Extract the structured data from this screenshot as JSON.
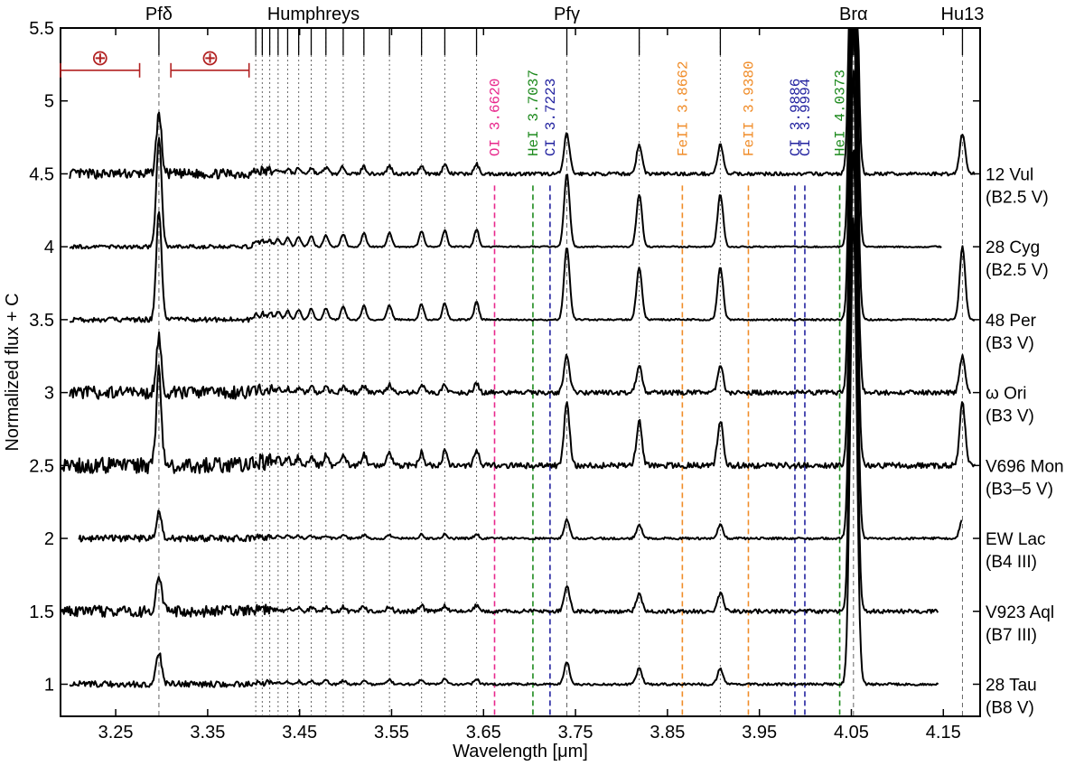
{
  "chart_data": {
    "type": "line",
    "xlabel": "Wavelength [μm]",
    "ylabel": "Normalized flux + C",
    "xlim": [
      3.19,
      4.19
    ],
    "ylim": [
      0.78,
      5.5
    ],
    "xticks": [
      3.25,
      3.35,
      3.45,
      3.55,
      3.65,
      3.75,
      3.85,
      3.95,
      4.05,
      4.15
    ],
    "xtick_labels": [
      "3.25",
      "3.35",
      "3.45",
      "3.55",
      "3.65",
      "3.75",
      "3.85",
      "3.95",
      "4.05",
      "4.15"
    ],
    "yticks": [
      1,
      1.5,
      2,
      2.5,
      3,
      3.5,
      4,
      4.5,
      5,
      5.5
    ],
    "ytick_labels": [
      "1",
      "1.5",
      "2",
      "2.5",
      "3",
      "3.5",
      "4",
      "4.5",
      "5",
      "5.5"
    ],
    "series_labels": [
      {
        "text": "Pfδ",
        "x": 3.297
      },
      {
        "text": "Humphreys",
        "x": 3.465
      },
      {
        "text": "Pfγ",
        "x": 3.7406
      },
      {
        "text": "Brα",
        "x": 4.0523
      },
      {
        "text": "Hu13",
        "x": 4.1708
      }
    ],
    "hydrogen_lines": [
      3.297,
      3.7406,
      4.0523,
      4.1708,
      3.9075,
      3.8193,
      3.6424,
      3.6079,
      3.5826,
      3.5477,
      3.5199,
      3.4974,
      3.4786,
      3.4626,
      3.449,
      3.437,
      3.4266,
      3.4175,
      3.4094,
      3.4023
    ],
    "telluric_bands": [
      {
        "x0": 3.19,
        "x1": 3.276,
        "label": "⊕"
      },
      {
        "x0": 3.31,
        "x1": 3.395,
        "label": "⊕"
      }
    ],
    "line_ids": [
      {
        "species": "OI",
        "wave": "3.6620",
        "x": 3.662,
        "color": "#e8288c"
      },
      {
        "species": "HeI",
        "wave": "3.7037",
        "x": 3.7037,
        "color": "#1e8a1e"
      },
      {
        "species": "CI",
        "wave": "3.7223",
        "x": 3.7223,
        "color": "#2323a0"
      },
      {
        "species": "FeII",
        "wave": "3.8662",
        "x": 3.8662,
        "color": "#f08c28"
      },
      {
        "species": "FeII",
        "wave": "3.9380",
        "x": 3.938,
        "color": "#f08c28"
      },
      {
        "species": "CI",
        "wave": "3.9886",
        "x": 3.9886,
        "color": "#2323a0"
      },
      {
        "species": "CI",
        "wave": "3.9994",
        "x": 3.9994,
        "color": "#2323a0"
      },
      {
        "species": "HeI",
        "wave": "4.0373",
        "x": 4.0373,
        "color": "#1e8a1e"
      }
    ],
    "series": [
      {
        "name": "12 Vul",
        "spectral_type": "(B2.5 V)",
        "offset": 4.5,
        "x_start": 3.2,
        "x_end": 4.185
      },
      {
        "name": "28 Cyg",
        "spectral_type": "(B2.5 V)",
        "offset": 4.0,
        "x_start": 3.2,
        "x_end": 4.148
      },
      {
        "name": "48 Per",
        "spectral_type": "(B3 V)",
        "offset": 3.5,
        "x_start": 3.2,
        "x_end": 4.185
      },
      {
        "name": "ω Ori",
        "spectral_type": "(B3 V)",
        "offset": 3.0,
        "x_start": 3.2,
        "x_end": 4.18
      },
      {
        "name": "V696 Mon",
        "spectral_type": "(B3–5 V)",
        "offset": 2.5,
        "x_start": 3.19,
        "x_end": 4.185
      },
      {
        "name": "EW Lac",
        "spectral_type": "(B4 III)",
        "offset": 2.0,
        "x_start": 3.21,
        "x_end": 4.17
      },
      {
        "name": "V923 Aql",
        "spectral_type": "(B7 III)",
        "offset": 1.5,
        "x_start": 3.19,
        "x_end": 4.145
      },
      {
        "name": "28 Tau",
        "spectral_type": "(B8 V)",
        "offset": 1.0,
        "x_start": 3.2,
        "x_end": 4.145
      }
    ],
    "grid": false,
    "colors": {
      "spectrum": "#000000",
      "telluric": "#b22222",
      "guide": "#000000"
    }
  }
}
